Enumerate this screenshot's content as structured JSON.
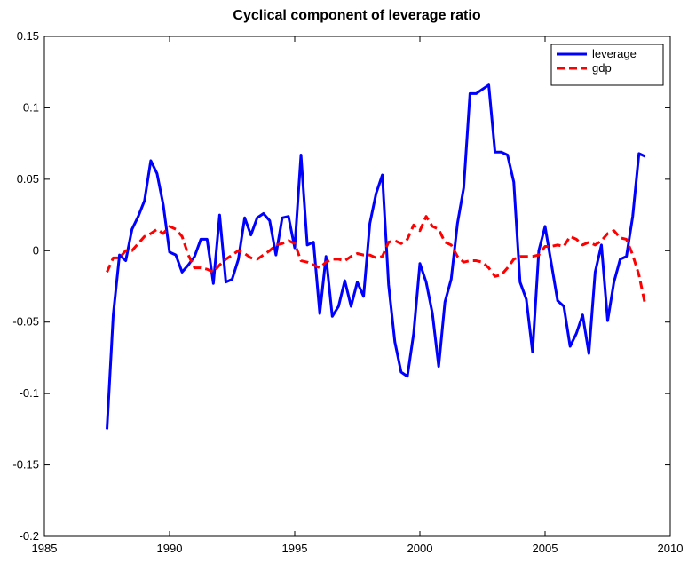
{
  "chart_data": {
    "type": "line",
    "title": "Cyclical component of leverage ratio",
    "x": [
      1987.5,
      1987.75,
      1988,
      1988.25,
      1988.5,
      1988.75,
      1989,
      1989.25,
      1989.5,
      1989.75,
      1990,
      1990.25,
      1990.5,
      1990.75,
      1991,
      1991.25,
      1991.5,
      1991.75,
      1992,
      1992.25,
      1992.5,
      1992.75,
      1993,
      1993.25,
      1993.5,
      1993.75,
      1994,
      1994.25,
      1994.5,
      1994.75,
      1995,
      1995.25,
      1995.5,
      1995.75,
      1996,
      1996.25,
      1996.5,
      1996.75,
      1997,
      1997.25,
      1997.5,
      1997.75,
      1998,
      1998.25,
      1998.5,
      1998.75,
      1999,
      1999.25,
      1999.5,
      1999.75,
      2000,
      2000.25,
      2000.5,
      2000.75,
      2001,
      2001.25,
      2001.5,
      2001.75,
      2002,
      2002.25,
      2002.5,
      2002.75,
      2003,
      2003.25,
      2003.5,
      2003.75,
      2004,
      2004.25,
      2004.5,
      2004.75,
      2005,
      2005.25,
      2005.5,
      2005.75,
      2006,
      2006.25,
      2006.5,
      2006.75,
      2007,
      2007.25,
      2007.5,
      2007.75,
      2008,
      2008.25,
      2008.5,
      2008.75,
      2009
    ],
    "series": [
      {
        "name": "leverage",
        "color": "#0000ff",
        "dashed": false,
        "values": [
          -0.125,
          -0.045,
          -0.003,
          -0.007,
          0.015,
          0.024,
          0.035,
          0.063,
          0.054,
          0.032,
          -0.001,
          -0.003,
          -0.015,
          -0.01,
          -0.004,
          0.008,
          0.008,
          -0.023,
          0.025,
          -0.022,
          -0.02,
          -0.006,
          0.023,
          0.011,
          0.023,
          0.026,
          0.021,
          -0.003,
          0.023,
          0.024,
          0.002,
          0.067,
          0.004,
          0.006,
          -0.044,
          -0.004,
          -0.046,
          -0.039,
          -0.021,
          -0.039,
          -0.022,
          -0.032,
          0.019,
          0.04,
          0.053,
          -0.024,
          -0.064,
          -0.085,
          -0.088,
          -0.058,
          -0.009,
          -0.022,
          -0.044,
          -0.081,
          -0.036,
          -0.02,
          0.019,
          0.044,
          0.11,
          0.11,
          0.113,
          0.116,
          0.069,
          0.069,
          0.067,
          0.048,
          -0.022,
          -0.034,
          -0.071,
          0.0,
          0.017,
          -0.009,
          -0.035,
          -0.039,
          -0.067,
          -0.058,
          -0.045,
          -0.072,
          -0.015,
          0.004,
          -0.049,
          -0.022,
          -0.006,
          -0.004,
          0.024,
          0.068,
          0.066
        ]
      },
      {
        "name": "gdp",
        "color": "#ff0000",
        "dashed": true,
        "values": [
          -0.015,
          -0.005,
          -0.005,
          0.0,
          0.0,
          0.005,
          0.01,
          0.012,
          0.015,
          0.012,
          0.017,
          0.015,
          0.01,
          -0.003,
          -0.012,
          -0.012,
          -0.013,
          -0.015,
          -0.01,
          -0.006,
          -0.003,
          0.0,
          -0.002,
          -0.005,
          -0.006,
          -0.003,
          0.0,
          0.004,
          0.005,
          0.007,
          0.005,
          -0.007,
          -0.008,
          -0.01,
          -0.012,
          -0.008,
          -0.006,
          -0.006,
          -0.007,
          -0.004,
          -0.002,
          -0.003,
          -0.003,
          -0.005,
          -0.004,
          0.006,
          0.007,
          0.005,
          0.008,
          0.018,
          0.014,
          0.024,
          0.017,
          0.015,
          0.006,
          0.004,
          -0.004,
          -0.008,
          -0.007,
          -0.007,
          -0.008,
          -0.012,
          -0.018,
          -0.017,
          -0.012,
          -0.006,
          -0.004,
          -0.004,
          -0.004,
          -0.003,
          0.003,
          0.003,
          0.004,
          0.003,
          0.01,
          0.008,
          0.004,
          0.006,
          0.004,
          0.007,
          0.012,
          0.014,
          0.009,
          0.008,
          -0.003,
          -0.017,
          -0.038
        ]
      }
    ],
    "xlim": [
      1985,
      2010
    ],
    "xticks": [
      1985,
      1990,
      1995,
      2000,
      2005,
      2010
    ],
    "ylim": [
      -0.2,
      0.15
    ],
    "yticks": [
      -0.2,
      -0.15,
      -0.1,
      -0.05,
      0,
      0.05,
      0.1,
      0.15
    ],
    "grid": false,
    "legend": "upper right"
  }
}
